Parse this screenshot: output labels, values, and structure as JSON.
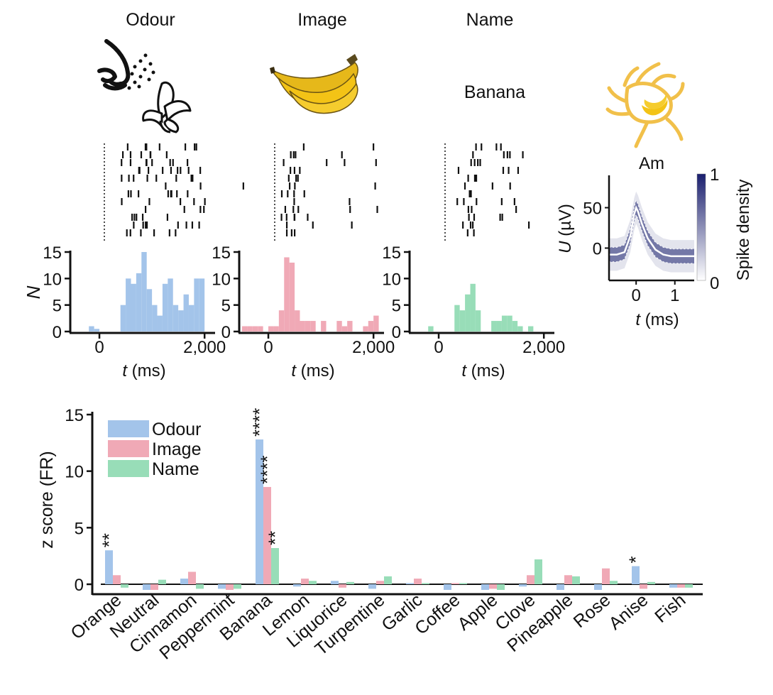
{
  "header": {
    "odour": "Odour",
    "image": "Image",
    "name": "Name",
    "name_word": "Banana"
  },
  "neuron": {
    "region": "Am"
  },
  "colors": {
    "odour": "#a3c4ea",
    "image": "#f0a9b6",
    "name": "#98ddb8",
    "density": "#1a1f6e",
    "banana": "#f3c316",
    "neuron": "#f1c04a"
  },
  "icons": [
    "nose-icon",
    "peeled-banana-icon",
    "banana-photo-icon",
    "neuron-banana-icon"
  ],
  "chart_data": [
    {
      "type": "bar",
      "name": "odour-psth",
      "xlabel_var": "t",
      "xlabel_unit": " (ms)",
      "ylabel": "N",
      "x_ticks": [
        "0",
        "2,000"
      ],
      "y_ticks": [
        "0",
        "5",
        "10",
        "15"
      ],
      "xlim": [
        -500,
        2200
      ],
      "ylim": [
        0,
        15
      ],
      "bin_width": 100,
      "bin_starts": [
        -200,
        -100,
        0,
        100,
        200,
        300,
        400,
        500,
        600,
        700,
        800,
        900,
        1000,
        1100,
        1200,
        1300,
        1400,
        1500,
        1600,
        1700,
        1800,
        1900
      ],
      "values": [
        1,
        0.5,
        0,
        0,
        0,
        0,
        5,
        10,
        9,
        11,
        15,
        8,
        5,
        3,
        9,
        10,
        5,
        4,
        7,
        5,
        10,
        10
      ]
    },
    {
      "type": "bar",
      "name": "image-psth",
      "xlabel_var": "t",
      "xlabel_unit": " (ms)",
      "x_ticks": [
        "0",
        "2,000"
      ],
      "y_ticks": [
        "0",
        "5",
        "10",
        "15"
      ],
      "xlim": [
        -500,
        2200
      ],
      "ylim": [
        0,
        15
      ],
      "bin_width": 100,
      "bin_starts": [
        -500,
        -400,
        -300,
        -200,
        -100,
        0,
        100,
        200,
        300,
        400,
        500,
        600,
        700,
        800,
        900,
        1000,
        1100,
        1200,
        1300,
        1400,
        1500,
        1600,
        1700,
        1800,
        1900,
        2000
      ],
      "values": [
        1,
        1,
        1,
        1,
        0,
        1,
        1,
        4,
        14,
        13,
        4,
        2,
        2,
        2,
        0,
        2,
        0,
        0,
        2,
        1,
        2,
        0,
        0,
        1,
        2,
        3
      ]
    },
    {
      "type": "bar",
      "name": "name-psth",
      "xlabel_var": "t",
      "xlabel_unit": " (ms)",
      "x_ticks": [
        "0",
        "2,000"
      ],
      "y_ticks": [
        "0",
        "5",
        "10",
        "15"
      ],
      "xlim": [
        -500,
        2200
      ],
      "ylim": [
        0,
        15
      ],
      "bin_width": 100,
      "bin_starts": [
        -200,
        -100,
        0,
        100,
        200,
        300,
        400,
        500,
        600,
        700,
        800,
        900,
        1000,
        1100,
        1200,
        1300,
        1400,
        1500,
        1600,
        1700
      ],
      "values": [
        1,
        0,
        0,
        0,
        0,
        5,
        4,
        7,
        9,
        4,
        0,
        0,
        2,
        2,
        3,
        3,
        2,
        1,
        0,
        1
      ]
    },
    {
      "type": "line",
      "name": "spike-waveform",
      "xlabel_var": "t",
      "xlabel_unit": " (ms)",
      "ylabel_var": "U",
      "ylabel_unit": " (µV)",
      "x_ticks": [
        "0",
        "1"
      ],
      "y_ticks": [
        "0",
        "50"
      ],
      "xlim": [
        -0.7,
        1.5
      ],
      "ylim": [
        -40,
        90
      ],
      "x": [
        -0.7,
        -0.5,
        -0.3,
        -0.15,
        -0.05,
        0,
        0.05,
        0.15,
        0.3,
        0.5,
        0.7,
        0.9,
        1.1,
        1.3,
        1.5
      ],
      "y": [
        -8,
        -8,
        -5,
        15,
        42,
        50,
        45,
        30,
        12,
        -2,
        -8,
        -10,
        -10,
        -10,
        -10
      ],
      "colorbar_label": "Spike density",
      "colorbar_ticks": [
        "0",
        "1"
      ]
    },
    {
      "type": "bar",
      "name": "z-score-summary",
      "ylabel": "z score (FR)",
      "ylim": [
        0,
        15
      ],
      "y_ticks": [
        "0",
        "5",
        "10",
        "15"
      ],
      "categories": [
        "Orange",
        "Neutral",
        "Cinnamon",
        "Peppermint",
        "Banana",
        "Lemon",
        "Liquorice",
        "Turpentine",
        "Garlic",
        "Coffee",
        "Apple",
        "Clove",
        "Pineapple",
        "Rose",
        "Anise",
        "Fish"
      ],
      "legend": "top-left",
      "series": [
        {
          "name": "Odour",
          "values": [
            3.0,
            -0.5,
            0.5,
            -0.4,
            12.8,
            -0.2,
            0.3,
            -0.4,
            0.1,
            -0.5,
            -0.5,
            -0.2,
            -0.5,
            -0.5,
            1.6,
            -0.3
          ]
        },
        {
          "name": "Image",
          "values": [
            0.8,
            -0.5,
            1.1,
            -0.5,
            8.6,
            0.5,
            -0.3,
            0.3,
            0.5,
            0.1,
            -0.4,
            0.8,
            0.8,
            1.4,
            -0.4,
            -0.3
          ]
        },
        {
          "name": "Name",
          "values": [
            -0.3,
            0.4,
            -0.4,
            -0.4,
            3.2,
            0.3,
            0.2,
            0.7,
            0.1,
            0.1,
            -0.5,
            2.2,
            0.7,
            0.3,
            0.2,
            -0.3
          ]
        }
      ],
      "significance": [
        {
          "category": "Orange",
          "series": "Odour",
          "stars": "**"
        },
        {
          "category": "Banana",
          "series": "Odour",
          "stars": "****"
        },
        {
          "category": "Banana",
          "series": "Image",
          "stars": "****"
        },
        {
          "category": "Banana",
          "series": "Name",
          "stars": "**"
        },
        {
          "category": "Anise",
          "series": "Odour",
          "stars": "*"
        }
      ]
    }
  ]
}
